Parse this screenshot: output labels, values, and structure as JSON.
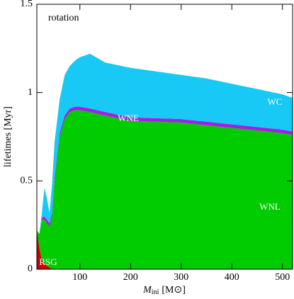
{
  "chart_data": {
    "type": "stacked_area",
    "annotation": "rotation",
    "ylabel": "lifetimes [Myr]",
    "xlabel": "M",
    "xlabel_sub": "ini",
    "xlabel_unit": "[M⊙]",
    "x": [
      15,
      20,
      25,
      30,
      35,
      40,
      45,
      50,
      60,
      70,
      80,
      90,
      100,
      120,
      150,
      200,
      250,
      300,
      350,
      400,
      450,
      500,
      520
    ],
    "series": [
      {
        "name": "RSG",
        "color": "#d00000",
        "values": [
          0.22,
          0.12,
          0.05,
          0.03,
          0.02,
          0.01,
          0,
          0,
          0,
          0,
          0,
          0,
          0,
          0,
          0,
          0,
          0,
          0,
          0,
          0,
          0,
          0,
          0
        ]
      },
      {
        "name": "WNL",
        "color": "#00cc00",
        "values": [
          0,
          0.08,
          0.23,
          0.25,
          0.24,
          0.23,
          0.3,
          0.5,
          0.75,
          0.85,
          0.89,
          0.9,
          0.9,
          0.89,
          0.87,
          0.84,
          0.835,
          0.83,
          0.815,
          0.8,
          0.785,
          0.77,
          0.76
        ]
      },
      {
        "name": "WNE",
        "color": "#a020e0",
        "values": [
          0,
          0,
          0.01,
          0.02,
          0.02,
          0.02,
          0.02,
          0.02,
          0.02,
          0.02,
          0.02,
          0.02,
          0.02,
          0.02,
          0.02,
          0.02,
          0.02,
          0.02,
          0.02,
          0.02,
          0.02,
          0.02,
          0.02
        ]
      },
      {
        "name": "WC",
        "color": "#18c8f5",
        "values": [
          0,
          0,
          0.03,
          0.16,
          0.12,
          0.06,
          0.16,
          0.2,
          0.19,
          0.23,
          0.24,
          0.26,
          0.28,
          0.31,
          0.28,
          0.28,
          0.265,
          0.25,
          0.245,
          0.23,
          0.215,
          0.2,
          0.19
        ]
      }
    ],
    "xlim": [
      15,
      520
    ],
    "xticks": [
      100,
      200,
      300,
      400,
      500
    ],
    "ylim": [
      0,
      1.5
    ],
    "yticks": [
      0,
      0.5,
      1,
      1.5
    ]
  }
}
